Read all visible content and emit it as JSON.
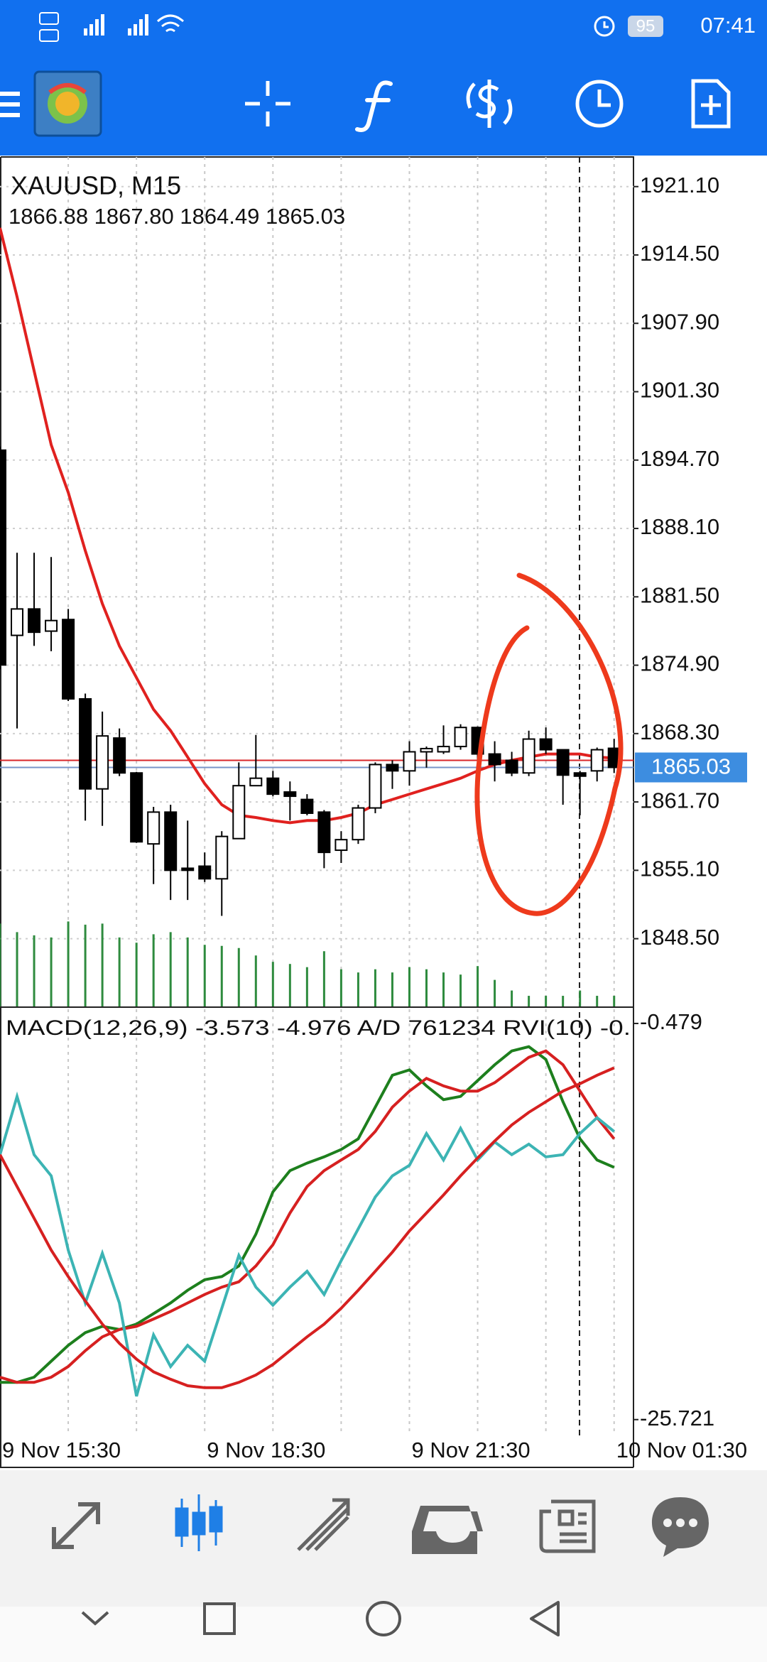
{
  "status_bar": {
    "time": "07:41",
    "battery": "95"
  },
  "chart_data": [
    {
      "type": "candlestick",
      "title": "XAUUSD, M15",
      "subtitle": "1866.88 1867.80 1864.49 1865.03",
      "categories": [
        "9 Nov 15:30",
        null,
        null,
        null,
        null,
        null,
        null,
        null,
        null,
        null,
        null,
        null,
        "9 Nov 18:30",
        null,
        null,
        null,
        null,
        null,
        null,
        null,
        null,
        null,
        null,
        null,
        "9 Nov 21:30",
        null,
        null,
        null,
        null,
        null,
        null,
        null,
        null,
        null,
        null,
        null,
        "10 Nov 01:30"
      ],
      "open": [
        1895.66,
        1877.78,
        1880.33,
        1878.19,
        1879.31,
        1871.65,
        1862.96,
        1867.87,
        1864.5,
        1857.65,
        1860.72,
        1855.3,
        1855.5,
        1854.28,
        1858.16,
        1863.27,
        1863.99,
        1862.66,
        1861.94,
        1860.72,
        1857.04,
        1858.06,
        1861.12,
        1865.31,
        1864.7,
        1866.54,
        1866.54,
        1867.05,
        1868.89,
        1866.33,
        1865.72,
        1864.5,
        1867.77,
        1866.74,
        1864.5,
        1864.7,
        1866.88
      ],
      "high": [
        1896.0,
        1885.75,
        1885.75,
        1885.34,
        1880.33,
        1872.16,
        1870.42,
        1868.79,
        1864.6,
        1861.23,
        1861.43,
        1859.9,
        1856.83,
        1858.88,
        1865.52,
        1868.17,
        1864.7,
        1863.68,
        1862.45,
        1860.92,
        1858.88,
        1861.43,
        1865.52,
        1865.72,
        1867.56,
        1867.05,
        1869.09,
        1869.2,
        1868.99,
        1867.56,
        1866.54,
        1868.58,
        1868.89,
        1866.74,
        1864.7,
        1866.95,
        1867.8
      ],
      "low": [
        1874.5,
        1868.79,
        1876.76,
        1876.25,
        1871.44,
        1859.9,
        1859.39,
        1864.19,
        1857.75,
        1853.77,
        1852.24,
        1852.24,
        1853.97,
        1850.7,
        1858.16,
        1863.27,
        1862.25,
        1859.9,
        1860.41,
        1855.3,
        1855.81,
        1857.65,
        1860.61,
        1862.96,
        1863.27,
        1865.01,
        1866.33,
        1866.74,
        1863.47,
        1863.68,
        1864.19,
        1864.19,
        1866.33,
        1861.43,
        1860.41,
        1863.68,
        1864.49
      ],
      "close": [
        1874.92,
        1880.33,
        1878.08,
        1879.21,
        1871.65,
        1862.96,
        1868.07,
        1864.5,
        1857.85,
        1860.72,
        1855.1,
        1855.1,
        1854.28,
        1858.37,
        1863.27,
        1863.99,
        1862.45,
        1862.25,
        1860.61,
        1856.83,
        1858.06,
        1861.12,
        1865.31,
        1864.7,
        1866.54,
        1866.85,
        1867.05,
        1868.89,
        1866.33,
        1865.31,
        1864.5,
        1867.77,
        1866.74,
        1864.29,
        1864.19,
        1866.74,
        1865.03
      ],
      "up_color": "#ffffff",
      "down_color": "#000000",
      "series": [
        {
          "color": "#e0211f",
          "values": [
            1917.11,
            1910.47,
            1903.32,
            1896.17,
            1891.57,
            1885.95,
            1880.84,
            1876.76,
            1873.69,
            1870.63,
            1868.58,
            1866.03,
            1863.47,
            1861.43,
            1860.41,
            1860.2,
            1859.9,
            1859.69,
            1859.9,
            1859.9,
            1860.2,
            1860.61,
            1861.43,
            1861.94,
            1862.45,
            1862.96,
            1863.47,
            1863.99,
            1864.7,
            1865.31,
            1865.72,
            1866.03,
            1866.33,
            1866.33,
            1866.33,
            1866.03,
            1865.93
          ]
        }
      ],
      "volume": {
        "color": "#2e8b3e",
        "values": [
          78,
          70,
          67,
          65,
          80,
          77,
          78,
          65,
          60,
          68,
          70,
          65,
          58,
          57,
          55,
          48,
          42,
          40,
          37,
          52,
          35,
          32,
          35,
          32,
          37,
          35,
          32,
          30,
          38,
          25,
          15,
          10,
          10,
          10,
          15,
          10,
          10
        ]
      },
      "vlim": [
        0,
        800
      ],
      "last_price": 1865.03,
      "ask": 1865.72,
      "ylim": [
        1841.96,
        1923.96
      ],
      "yticks": [
        {
          "value": 1921.1,
          "label": "1921.10"
        },
        {
          "value": 1914.5,
          "label": "1914.50"
        },
        {
          "value": 1907.9,
          "label": "1907.90"
        },
        {
          "value": 1901.3,
          "label": "1901.30"
        },
        {
          "value": 1894.7,
          "label": "1894.70"
        },
        {
          "value": 1888.1,
          "label": "1888.10"
        },
        {
          "value": 1881.5,
          "label": "1881.50"
        },
        {
          "value": 1874.9,
          "label": "1874.90"
        },
        {
          "value": 1868.3,
          "label": "1868.30"
        },
        {
          "value": 1861.7,
          "label": "1861.70"
        },
        {
          "value": 1855.1,
          "label": "1855.10"
        },
        {
          "value": 1848.5,
          "label": "1848.50"
        }
      ],
      "grid": true
    },
    {
      "type": "line",
      "title": "MACD(12,26,9) -3.573 -4.976 A/D 761234 RVI(10) -0.",
      "series": [
        {
          "color": "#1d7f1d",
          "values": [
            -23.35,
            -23.35,
            -23.02,
            -22.0,
            -20.99,
            -20.18,
            -19.78,
            -19.98,
            -19.64,
            -18.97,
            -18.29,
            -17.48,
            -16.81,
            -16.61,
            -15.93,
            -13.91,
            -11.21,
            -9.86,
            -9.38,
            -8.98,
            -8.51,
            -7.83,
            -5.81,
            -3.78,
            -3.44,
            -4.46,
            -5.33,
            -5.13,
            -4.12,
            -3.11,
            -2.23,
            -1.96,
            -2.77,
            -5.47,
            -7.83,
            -9.18,
            -9.65
          ]
        },
        {
          "color": "#d62020",
          "values": [
            -23.02,
            -23.35,
            -23.35,
            -23.02,
            -22.34,
            -21.33,
            -20.45,
            -19.98,
            -19.78,
            -19.31,
            -18.83,
            -18.29,
            -17.75,
            -17.28,
            -16.94,
            -15.93,
            -14.58,
            -12.56,
            -10.87,
            -9.86,
            -9.18,
            -8.51,
            -7.36,
            -5.81,
            -4.79,
            -3.98,
            -4.46,
            -4.79,
            -4.79,
            -4.25,
            -3.44,
            -2.64,
            -2.23,
            -3.11,
            -4.79,
            -6.48,
            -7.83
          ]
        },
        {
          "color": "#3cb4b4",
          "values": [
            -8.84,
            -5.13,
            -8.84,
            -10.19,
            -14.92,
            -18.29,
            -15.12,
            -18.29,
            -24.23,
            -20.32,
            -22.34,
            -20.99,
            -22.0,
            -18.63,
            -15.26,
            -17.28,
            -18.43,
            -17.28,
            -16.27,
            -17.75,
            -15.59,
            -13.57,
            -11.54,
            -10.19,
            -9.52,
            -7.49,
            -9.18,
            -7.16,
            -9.18,
            -8.03,
            -8.84,
            -8.17,
            -8.98,
            -8.84,
            -7.49,
            -6.48,
            -7.36
          ]
        },
        {
          "color": "#d62020",
          "values": [
            -8.84,
            -10.87,
            -12.89,
            -14.92,
            -16.61,
            -18.16,
            -19.64,
            -20.86,
            -21.87,
            -22.68,
            -23.15,
            -23.56,
            -23.69,
            -23.69,
            -23.35,
            -22.88,
            -22.21,
            -21.33,
            -20.45,
            -19.64,
            -18.63,
            -17.48,
            -16.27,
            -15.05,
            -13.7,
            -12.56,
            -11.41,
            -10.19,
            -9.05,
            -7.97,
            -6.95,
            -6.14,
            -5.47,
            -4.79,
            -4.32,
            -3.78,
            -3.31
          ]
        }
      ],
      "ylim": [
        -26.73,
        0.47
      ],
      "yticks": [
        -0.479,
        -25.721
      ],
      "grid": false
    }
  ]
}
